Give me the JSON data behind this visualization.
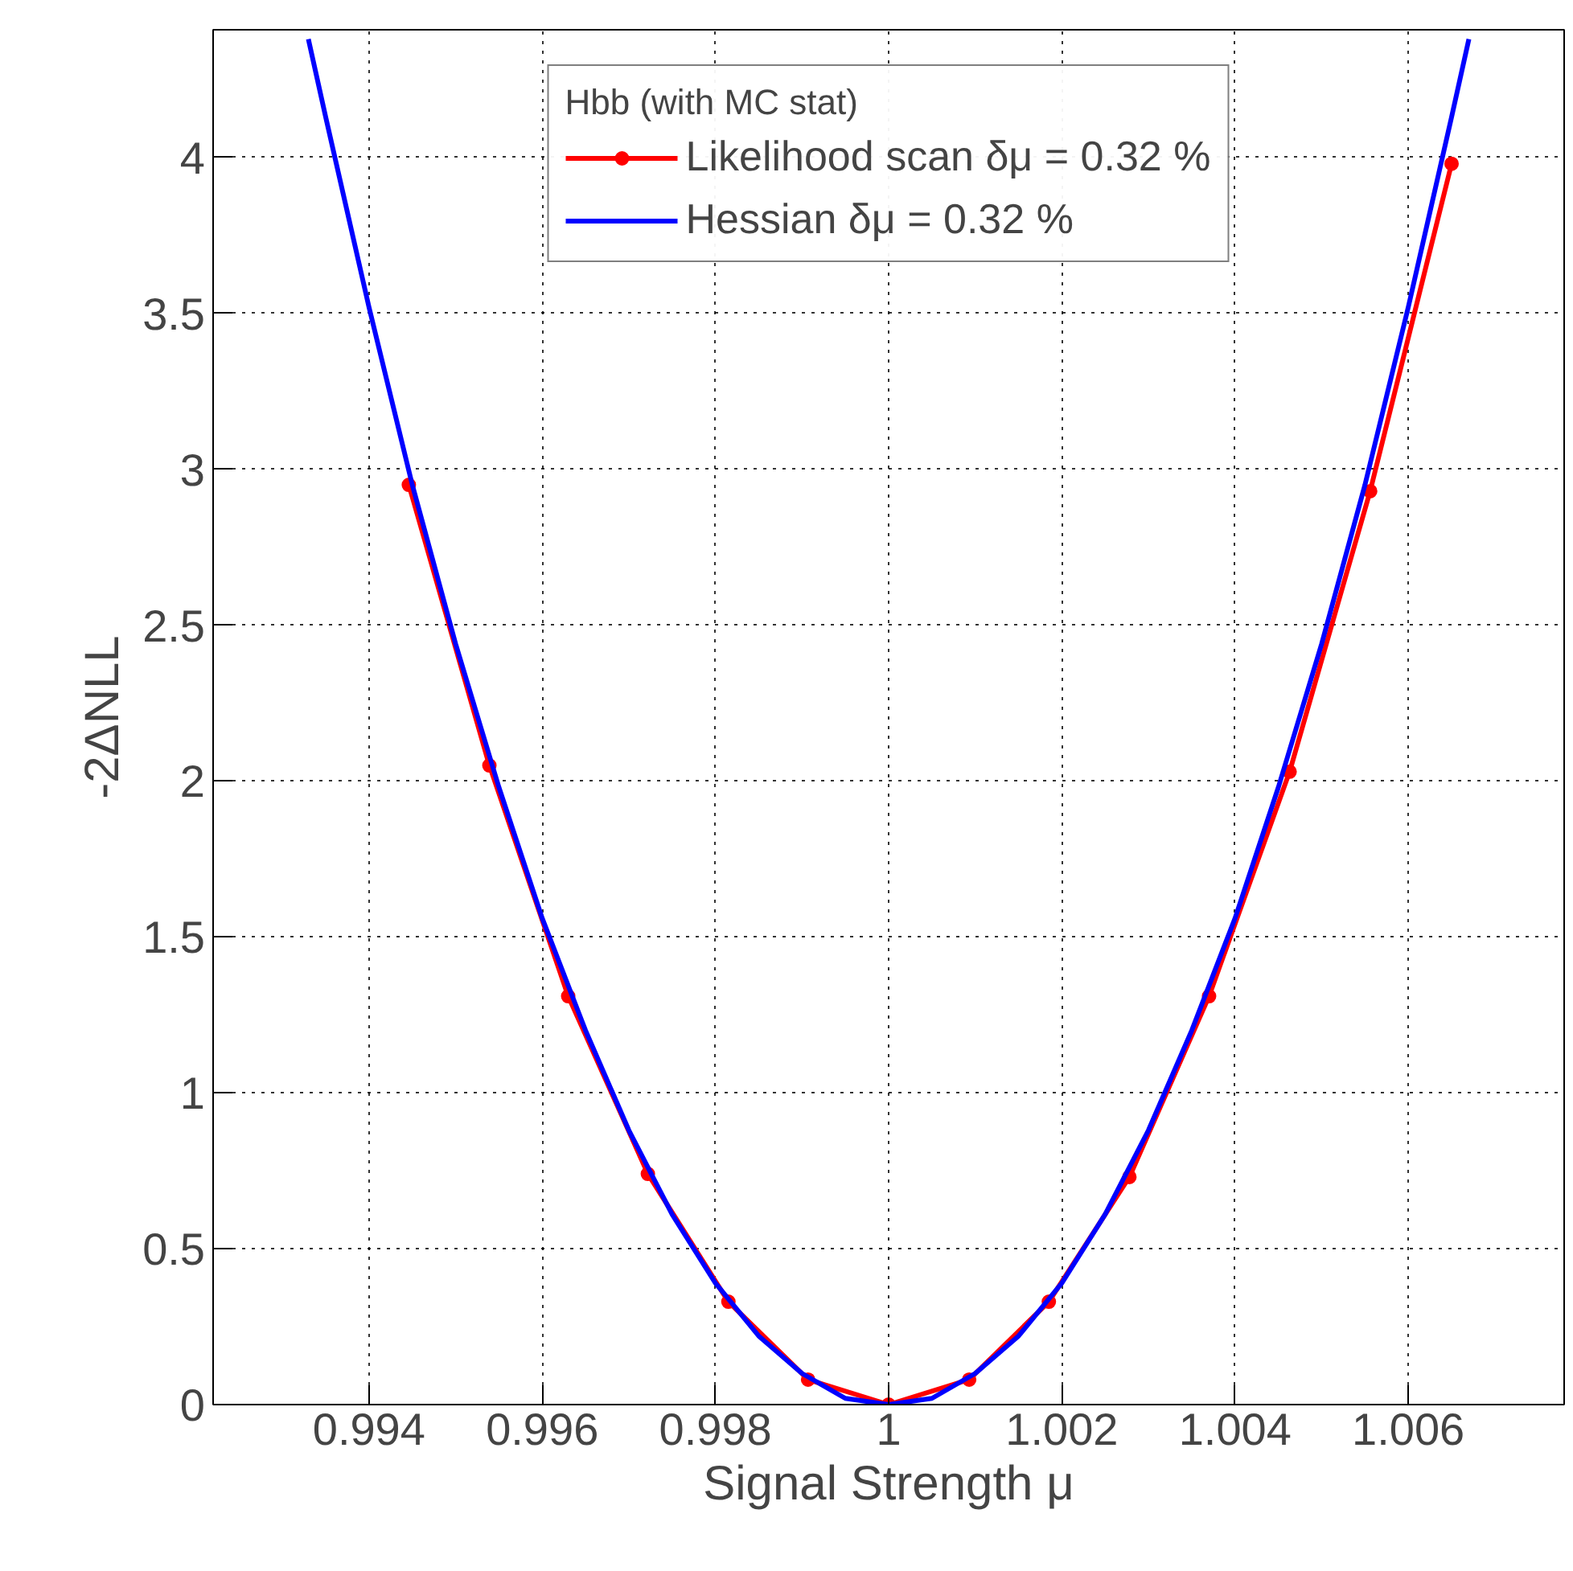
{
  "chart_data": {
    "type": "line",
    "xlabel": "Signal Strength μ",
    "ylabel": "-2ΔNLL",
    "legend_title": "Hbb (with MC stat)",
    "xlim": [
      0.9922,
      1.0078
    ],
    "ylim": [
      0,
      4.41
    ],
    "xticks": [
      0.994,
      0.996,
      0.998,
      1,
      1.002,
      1.004,
      1.006
    ],
    "yticks": [
      0,
      0.5,
      1,
      1.5,
      2,
      2.5,
      3,
      3.5,
      4
    ],
    "grid": true,
    "legend": "top",
    "series": [
      {
        "name": "Likelihood scan δμ = 0.32 %",
        "color": "#ff0000",
        "marker": "circle",
        "x": [
          0.99446,
          0.99539,
          0.9963,
          0.99722,
          0.99815,
          0.99907,
          1.0,
          1.00093,
          1.00185,
          1.00278,
          1.0037,
          1.00463,
          1.00556,
          1.0065
        ],
        "values": [
          2.95,
          2.05,
          1.31,
          0.74,
          0.33,
          0.08,
          0.0,
          0.08,
          0.33,
          0.73,
          1.31,
          2.03,
          2.93,
          3.98
        ]
      },
      {
        "name": "Hessian δμ = 0.32 %",
        "color": "#0000ff",
        "marker": "none",
        "x": [
          0.9933,
          0.9935,
          0.994,
          0.9945,
          0.995,
          0.9955,
          0.996,
          0.9965,
          0.997,
          0.9975,
          0.998,
          0.9985,
          0.999,
          0.9995,
          1.0,
          1.0005,
          1.001,
          1.0015,
          1.002,
          1.0025,
          1.003,
          1.0035,
          1.004,
          1.0045,
          1.005,
          1.0055,
          1.006,
          1.0065,
          1.0067
        ],
        "values": [
          4.38,
          4.13,
          3.52,
          2.95,
          2.44,
          1.98,
          1.56,
          1.2,
          0.88,
          0.61,
          0.39,
          0.22,
          0.1,
          0.02,
          0.0,
          0.02,
          0.1,
          0.22,
          0.39,
          0.61,
          0.88,
          1.2,
          1.56,
          1.98,
          2.44,
          2.95,
          3.52,
          4.13,
          4.38
        ]
      }
    ]
  }
}
